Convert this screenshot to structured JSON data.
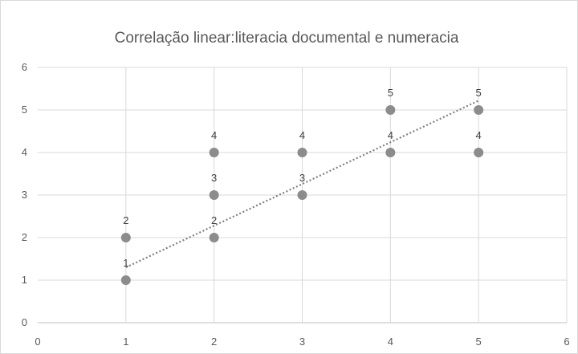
{
  "chart_data": {
    "type": "scatter",
    "title": "Correlação linear:literacia documental e numeracia",
    "xlabel": "",
    "ylabel": "",
    "xlim": [
      0,
      6
    ],
    "ylim": [
      0,
      6
    ],
    "x_ticks": [
      0,
      1,
      2,
      3,
      4,
      5,
      6
    ],
    "y_ticks": [
      0,
      1,
      2,
      3,
      4,
      5,
      6
    ],
    "grid": true,
    "legend": "none",
    "points": [
      {
        "x": 1,
        "y": 1,
        "label": "1"
      },
      {
        "x": 1,
        "y": 2,
        "label": "2"
      },
      {
        "x": 2,
        "y": 2,
        "label": "2"
      },
      {
        "x": 2,
        "y": 3,
        "label": "3"
      },
      {
        "x": 2,
        "y": 4,
        "label": "4"
      },
      {
        "x": 3,
        "y": 3,
        "label": "3"
      },
      {
        "x": 3,
        "y": 4,
        "label": "4"
      },
      {
        "x": 4,
        "y": 4,
        "label": "4"
      },
      {
        "x": 4,
        "y": 5,
        "label": "5"
      },
      {
        "x": 5,
        "y": 4,
        "label": "4"
      },
      {
        "x": 5,
        "y": 5,
        "label": "5"
      }
    ],
    "trendline": {
      "type": "linear",
      "x": [
        1,
        5
      ],
      "y": [
        1.3,
        5.22
      ]
    },
    "colors": {
      "marker": "#8c8c8c",
      "trendline": "#808080",
      "grid": "#d9d9d9"
    }
  }
}
